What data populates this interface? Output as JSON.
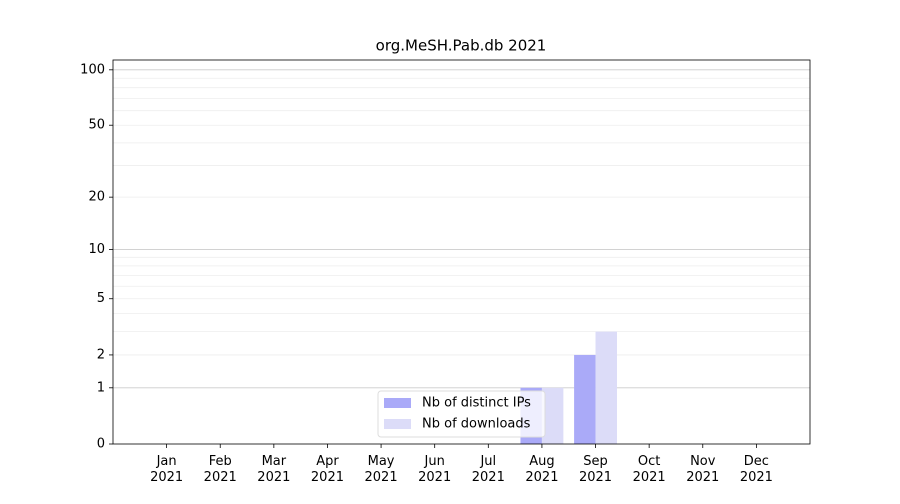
{
  "chart_data": {
    "type": "bar",
    "title": "org.MeSH.Pab.db 2021",
    "categories": [
      [
        "Jan",
        "2021"
      ],
      [
        "Feb",
        "2021"
      ],
      [
        "Mar",
        "2021"
      ],
      [
        "Apr",
        "2021"
      ],
      [
        "May",
        "2021"
      ],
      [
        "Jun",
        "2021"
      ],
      [
        "Jul",
        "2021"
      ],
      [
        "Aug",
        "2021"
      ],
      [
        "Sep",
        "2021"
      ],
      [
        "Oct",
        "2021"
      ],
      [
        "Nov",
        "2021"
      ],
      [
        "Dec",
        "2021"
      ]
    ],
    "series": [
      {
        "name": "Nb of distinct IPs",
        "color": "#aaaaf8",
        "values": [
          0,
          0,
          0,
          0,
          0,
          0,
          0,
          1,
          2,
          0,
          0,
          0
        ]
      },
      {
        "name": "Nb of downloads",
        "color": "#dcdcf8",
        "values": [
          0,
          0,
          0,
          0,
          0,
          0,
          0,
          1,
          3,
          0,
          0,
          0
        ]
      }
    ],
    "y_scale": "log1p",
    "ylim": [
      0,
      113
    ],
    "yticks": [
      0,
      1,
      2,
      5,
      10,
      20,
      50,
      100
    ],
    "minor_yticks": [
      3,
      4,
      6,
      7,
      8,
      9,
      30,
      40,
      60,
      70,
      80,
      90
    ],
    "grid": true,
    "legend": "lower center"
  }
}
